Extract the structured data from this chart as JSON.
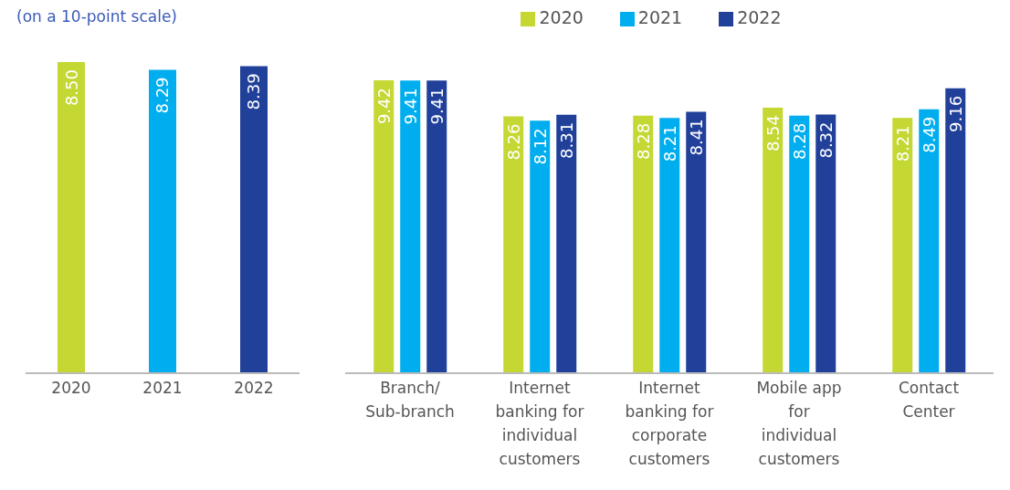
{
  "chart_data": [
    {
      "type": "bar",
      "subtitle": "(on a 10-point scale)",
      "categories": [
        "2020",
        "2021",
        "2022"
      ],
      "values": [
        8.5,
        8.29,
        8.39
      ],
      "colors": [
        "#c4d733",
        "#00aeef",
        "#21409a"
      ],
      "data_labels": true,
      "value_labels": [
        "8.50",
        "8.29",
        "8.39"
      ],
      "legend": false
    },
    {
      "type": "bar",
      "categories": [
        "Branch/ Sub-branch",
        "Internet banking for individual customers",
        "Internet banking for corporate customers",
        "Mobile app for individual customers",
        "Contact Center"
      ],
      "series": [
        {
          "name": "2020",
          "color": "#c4d733",
          "values": [
            9.42,
            8.26,
            8.28,
            8.54,
            8.21
          ],
          "value_labels": [
            "9.42",
            "8.26",
            "8.28",
            "8.54",
            "8.21"
          ]
        },
        {
          "name": "2021",
          "color": "#00aeef",
          "values": [
            9.41,
            8.12,
            8.21,
            8.28,
            8.49
          ],
          "value_labels": [
            "9.41",
            "8.12",
            "8.21",
            "8.28",
            "8.49"
          ]
        },
        {
          "name": "2022",
          "color": "#21409a",
          "values": [
            9.41,
            8.31,
            8.41,
            8.32,
            9.16
          ],
          "value_labels": [
            "9.41",
            "8.31",
            "8.41",
            "8.32",
            "9.16"
          ]
        }
      ],
      "data_labels": true,
      "legend": "top"
    }
  ]
}
